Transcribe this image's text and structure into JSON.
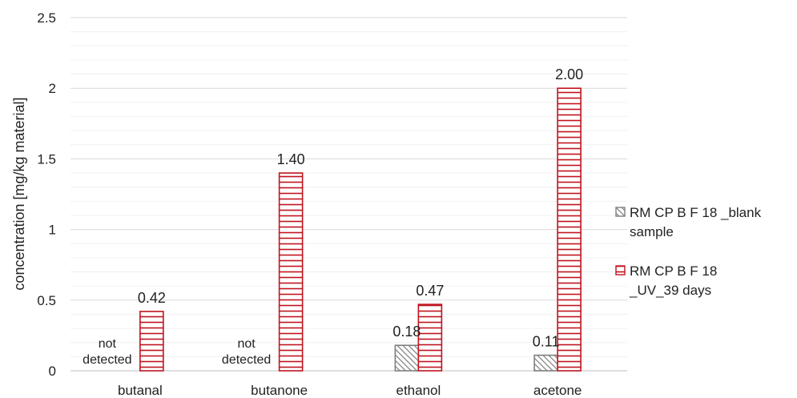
{
  "chart_data": {
    "type": "bar",
    "categories": [
      "butanal",
      "butanone",
      "ethanol",
      "acetone"
    ],
    "series": [
      {
        "name": "RM CP B F 18 _blank sample",
        "legend_lines": [
          "RM CP B F 18 _blank",
          "sample"
        ],
        "values": [
          null,
          null,
          0.18,
          0.11
        ],
        "labels": [
          "",
          "",
          "0.18",
          "0.11"
        ],
        "pattern": "diagonal-hatch",
        "color": "#7f7f7f"
      },
      {
        "name": "RM CP B F 18 _UV_39 days",
        "legend_lines": [
          "RM CP B F 18",
          "_UV_39 days"
        ],
        "values": [
          0.42,
          1.4,
          0.47,
          2.0
        ],
        "labels": [
          "0.42",
          "1.40",
          "0.47",
          "2.00"
        ],
        "pattern": "horizontal-lines",
        "color": "#c0141e"
      }
    ],
    "not_detected_lines": [
      "not",
      "detected"
    ],
    "ylabel": "concentration [mg/kg material]",
    "xlabel": "",
    "ylim": [
      0,
      2.5
    ],
    "yticks": [
      0,
      0.5,
      1,
      1.5,
      2,
      2.5
    ],
    "ytick_labels": [
      "0",
      "0.5",
      "1",
      "1.5",
      "2",
      "2.5"
    ],
    "minor_grid_step": 0.1,
    "grid": true,
    "legend_position": "right"
  }
}
